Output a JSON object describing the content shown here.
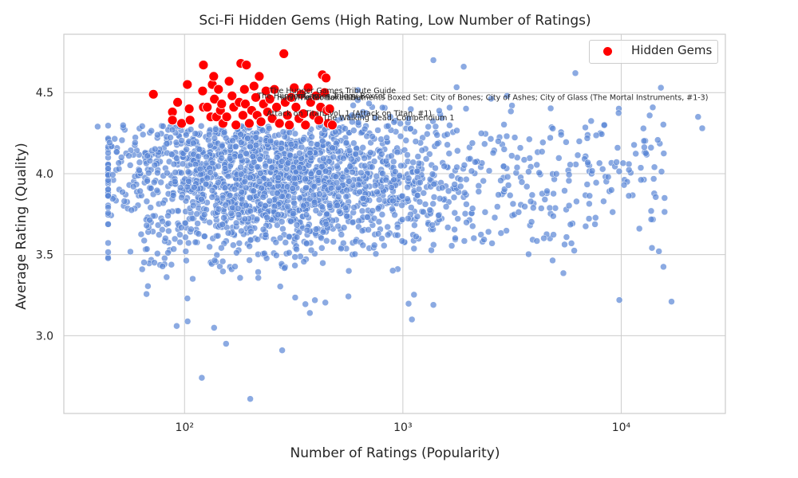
{
  "chart_data": {
    "type": "scatter",
    "title": "Sci-Fi Hidden Gems (High Rating, Low Number of Ratings)",
    "xlabel": "Number of Ratings (Popularity)",
    "ylabel": "Average Rating (Quality)",
    "x_scale": "log",
    "xlim": [
      28,
      30000
    ],
    "ylim": [
      2.52,
      4.86
    ],
    "x_ticks": [
      {
        "value": 100,
        "label": "10²"
      },
      {
        "value": 1000,
        "label": "10³"
      },
      {
        "value": 10000,
        "label": "10⁴"
      }
    ],
    "y_ticks": [
      3.0,
      3.5,
      4.0,
      4.5
    ],
    "grid": true,
    "legend": {
      "placement": "top-right",
      "entries": [
        "Hidden Gems"
      ]
    },
    "colors": {
      "background_points": "#5a86d6",
      "hidden_gems": "#ff0000",
      "grid": "#cccccc"
    },
    "background_series": {
      "point_count": 2200,
      "notable_points": [
        {
          "x": 40,
          "y": 4.29
        },
        {
          "x": 53,
          "y": 3.83
        },
        {
          "x": 62,
          "y": 4.02
        },
        {
          "x": 64,
          "y": 3.41
        },
        {
          "x": 67,
          "y": 3.68
        },
        {
          "x": 84,
          "y": 3.74
        },
        {
          "x": 92,
          "y": 3.06
        },
        {
          "x": 103,
          "y": 3.23
        },
        {
          "x": 120,
          "y": 2.74
        },
        {
          "x": 155,
          "y": 2.95
        },
        {
          "x": 200,
          "y": 2.61
        },
        {
          "x": 280,
          "y": 2.91
        },
        {
          "x": 375,
          "y": 3.14
        },
        {
          "x": 1100,
          "y": 3.1
        },
        {
          "x": 1380,
          "y": 3.19
        },
        {
          "x": 1380,
          "y": 4.7
        },
        {
          "x": 1900,
          "y": 4.66
        },
        {
          "x": 3000,
          "y": 4.48
        },
        {
          "x": 9800,
          "y": 3.22
        },
        {
          "x": 10300,
          "y": 3.93
        },
        {
          "x": 15200,
          "y": 4.53
        },
        {
          "x": 15800,
          "y": 3.85
        },
        {
          "x": 17000,
          "y": 3.21
        },
        {
          "x": 22500,
          "y": 4.35
        },
        {
          "x": 23500,
          "y": 4.28
        }
      ]
    },
    "series": [
      {
        "name": "Hidden Gems",
        "color": "#ff0000",
        "points": [
          {
            "x": 72,
            "y": 4.49
          },
          {
            "x": 88,
            "y": 4.38
          },
          {
            "x": 88,
            "y": 4.33
          },
          {
            "x": 93,
            "y": 4.44
          },
          {
            "x": 97,
            "y": 4.31
          },
          {
            "x": 103,
            "y": 4.55
          },
          {
            "x": 105,
            "y": 4.4
          },
          {
            "x": 106,
            "y": 4.33
          },
          {
            "x": 121,
            "y": 4.51
          },
          {
            "x": 122,
            "y": 4.67
          },
          {
            "x": 122,
            "y": 4.41
          },
          {
            "x": 127,
            "y": 4.41
          },
          {
            "x": 132,
            "y": 4.35
          },
          {
            "x": 134,
            "y": 4.55
          },
          {
            "x": 136,
            "y": 4.6
          },
          {
            "x": 137,
            "y": 4.46
          },
          {
            "x": 140,
            "y": 4.35
          },
          {
            "x": 143,
            "y": 4.52
          },
          {
            "x": 146,
            "y": 4.39
          },
          {
            "x": 148,
            "y": 4.43
          },
          {
            "x": 150,
            "y": 4.31
          },
          {
            "x": 156,
            "y": 4.35
          },
          {
            "x": 160,
            "y": 4.57
          },
          {
            "x": 165,
            "y": 4.48
          },
          {
            "x": 168,
            "y": 4.41
          },
          {
            "x": 172,
            "y": 4.3
          },
          {
            "x": 178,
            "y": 4.44
          },
          {
            "x": 181,
            "y": 4.68
          },
          {
            "x": 185,
            "y": 4.36
          },
          {
            "x": 188,
            "y": 4.52
          },
          {
            "x": 190,
            "y": 4.43
          },
          {
            "x": 192,
            "y": 4.67
          },
          {
            "x": 198,
            "y": 4.31
          },
          {
            "x": 203,
            "y": 4.39
          },
          {
            "x": 208,
            "y": 4.54
          },
          {
            "x": 212,
            "y": 4.47
          },
          {
            "x": 215,
            "y": 4.36
          },
          {
            "x": 220,
            "y": 4.6
          },
          {
            "x": 224,
            "y": 4.32
          },
          {
            "x": 230,
            "y": 4.43
          },
          {
            "x": 236,
            "y": 4.51
          },
          {
            "x": 240,
            "y": 4.38
          },
          {
            "x": 246,
            "y": 4.46
          },
          {
            "x": 252,
            "y": 4.34
          },
          {
            "x": 258,
            "y": 4.52
          },
          {
            "x": 264,
            "y": 4.41
          },
          {
            "x": 272,
            "y": 4.31
          },
          {
            "x": 285,
            "y": 4.74
          },
          {
            "x": 289,
            "y": 4.44
          },
          {
            "x": 296,
            "y": 4.36
          },
          {
            "x": 302,
            "y": 4.3
          },
          {
            "x": 308,
            "y": 4.47
          },
          {
            "x": 318,
            "y": 4.53
          },
          {
            "x": 324,
            "y": 4.41
          },
          {
            "x": 334,
            "y": 4.34
          },
          {
            "x": 342,
            "y": 4.49
          },
          {
            "x": 350,
            "y": 4.37
          },
          {
            "x": 358,
            "y": 4.3
          },
          {
            "x": 368,
            "y": 4.53
          },
          {
            "x": 378,
            "y": 4.44
          },
          {
            "x": 390,
            "y": 4.36
          },
          {
            "x": 400,
            "y": 4.48
          },
          {
            "x": 412,
            "y": 4.33
          },
          {
            "x": 420,
            "y": 4.41
          },
          {
            "x": 428,
            "y": 4.61
          },
          {
            "x": 438,
            "y": 4.5
          },
          {
            "x": 445,
            "y": 4.59
          },
          {
            "x": 450,
            "y": 4.39
          },
          {
            "x": 455,
            "y": 4.31
          },
          {
            "x": 462,
            "y": 4.4
          },
          {
            "x": 475,
            "y": 4.3
          }
        ]
      }
    ],
    "annotations": [
      {
        "text": "The Hunger Games Tribute Guide",
        "x": 245,
        "y": 4.495
      },
      {
        "text": "The Mortal Instruments Boxed Set: City of Bones; City of Ashes; City of Glass (The Mortal Instruments, #1-3)",
        "x": 325,
        "y": 4.455
      },
      {
        "text": "Attack on Titan, Vol. 1 (Attack on Titan, #1)",
        "x": 238,
        "y": 4.355
      },
      {
        "text": "The Walking Dead, Compendium 1",
        "x": 430,
        "y": 4.33
      },
      {
        "text": "The Hunger Games Trilogy Boxset",
        "x": 215,
        "y": 4.465
      },
      {
        "text": "Harry Potter Boxed Set",
        "x": 265,
        "y": 4.455
      }
    ]
  }
}
